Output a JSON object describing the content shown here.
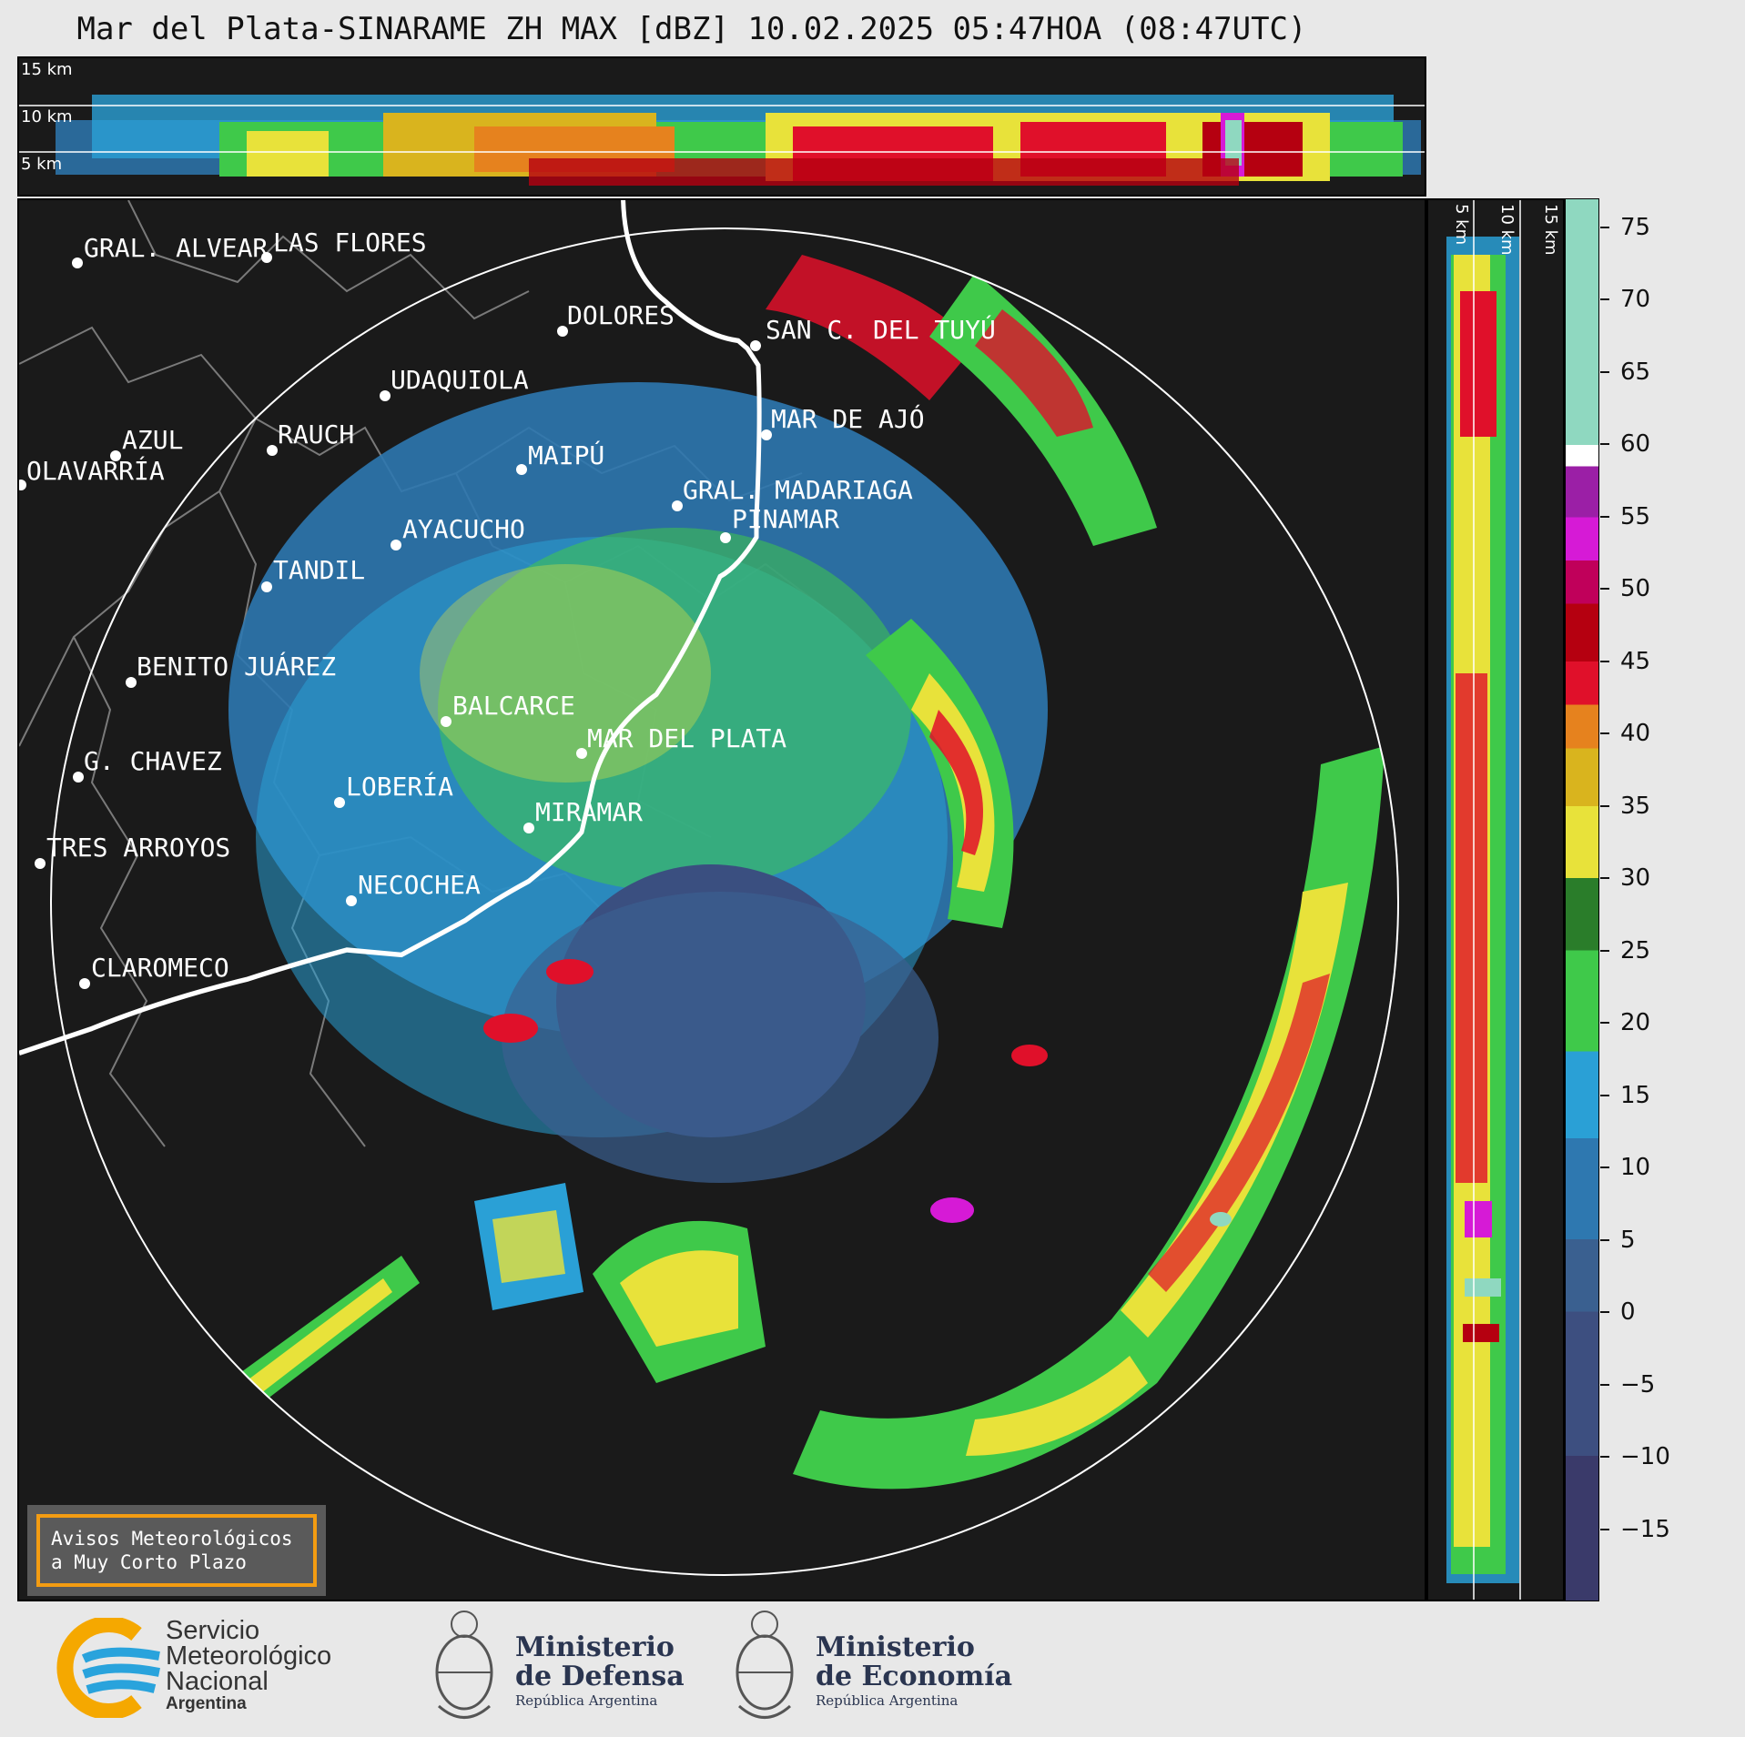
{
  "title": "Mar del Plata-SINARAME ZH MAX [dBZ] 10.02.2025 05:47HOA (08:47UTC)",
  "top_panel": {
    "height_labels": [
      "15 km",
      "10 km",
      "5 km"
    ]
  },
  "right_panel": {
    "height_labels": [
      "5 km",
      "10 km",
      "15 km"
    ]
  },
  "colorbar": {
    "unit": "dBZ",
    "ticks": [
      "75",
      "70",
      "65",
      "60",
      "55",
      "50",
      "45",
      "40",
      "35",
      "30",
      "25",
      "20",
      "15",
      "10",
      "5",
      "0",
      "−5",
      "−10",
      "−15"
    ],
    "tick_values": [
      75,
      70,
      65,
      60,
      55,
      50,
      45,
      40,
      35,
      30,
      25,
      20,
      15,
      10,
      5,
      0,
      -5,
      -10,
      -15
    ],
    "range": [
      -20,
      77
    ],
    "stops": [
      {
        "from": 60,
        "to": 77,
        "color": "#8fd8c0"
      },
      {
        "from": 58.5,
        "to": 60,
        "color": "#ffffff"
      },
      {
        "from": 55,
        "to": 58.5,
        "color": "#9b1fa6"
      },
      {
        "from": 52,
        "to": 55,
        "color": "#d61ad6"
      },
      {
        "from": 49,
        "to": 52,
        "color": "#c0005a"
      },
      {
        "from": 45,
        "to": 49,
        "color": "#b50010"
      },
      {
        "from": 42,
        "to": 45,
        "color": "#e0102a"
      },
      {
        "from": 39,
        "to": 42,
        "color": "#e6821e"
      },
      {
        "from": 35,
        "to": 39,
        "color": "#d9b41e"
      },
      {
        "from": 30,
        "to": 35,
        "color": "#e8e23a"
      },
      {
        "from": 25,
        "to": 30,
        "color": "#2a7d2a"
      },
      {
        "from": 18,
        "to": 25,
        "color": "#3fc94a"
      },
      {
        "from": 12,
        "to": 18,
        "color": "#2aa0d6"
      },
      {
        "from": 5,
        "to": 12,
        "color": "#2e78b0"
      },
      {
        "from": 0,
        "to": 5,
        "color": "#3a6090"
      },
      {
        "from": -10,
        "to": 0,
        "color": "#3d4f80"
      },
      {
        "from": -20,
        "to": -10,
        "color": "#3a3a6a"
      }
    ]
  },
  "cities": [
    {
      "name": "GRAL. ALVEAR"
    },
    {
      "name": "LAS FLORES"
    },
    {
      "name": "DOLORES"
    },
    {
      "name": "SAN C. DEL TUYÚ"
    },
    {
      "name": "UDAQUIOLA"
    },
    {
      "name": "AZUL"
    },
    {
      "name": "RAUCH"
    },
    {
      "name": "OLAVARRÍA"
    },
    {
      "name": "MAR DE AJÓ"
    },
    {
      "name": "MAIPÚ"
    },
    {
      "name": "GRAL. MADARIAGA"
    },
    {
      "name": "PINAMAR"
    },
    {
      "name": "AYACUCHO"
    },
    {
      "name": "TANDIL"
    },
    {
      "name": "BENITO JUÁREZ"
    },
    {
      "name": "BALCARCE"
    },
    {
      "name": "MAR DEL PLATA"
    },
    {
      "name": "G. CHAVEZ"
    },
    {
      "name": "LOBERÍA"
    },
    {
      "name": "MIRAMAR"
    },
    {
      "name": "TRES ARROYOS"
    },
    {
      "name": "NECOCHEA"
    },
    {
      "name": "CLAROMECO"
    }
  ],
  "warning_box": {
    "line1": "Avisos Meteorológicos",
    "line2": "a Muy Corto Plazo"
  },
  "logos": {
    "smn": {
      "line1": "Servicio",
      "line2": "Meteorológico",
      "line3": "Nacional",
      "line4": "Argentina"
    },
    "defensa": {
      "line1": "Ministerio",
      "line2": "de Defensa",
      "line3": "República Argentina"
    },
    "economia": {
      "line1": "Ministerio",
      "line2": "de Economía",
      "line3": "República Argentina"
    }
  },
  "colors": {
    "panel_bg": "#1a1a1a",
    "coast": "#ffffff",
    "borders": "#7a7a7a",
    "warning_border": "#f39c12",
    "smn_orange": "#f5a800",
    "smn_blue": "#29a3dc"
  }
}
